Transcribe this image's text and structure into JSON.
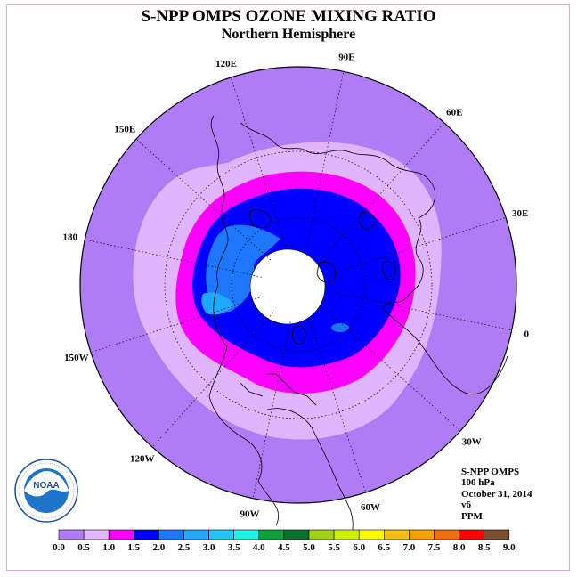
{
  "title": "S-NPP OMPS OZONE MIXING RATIO",
  "subtitle": "Northern Hemisphere",
  "longitude_labels": [
    "90E",
    "60E",
    "30E",
    "0",
    "30W",
    "60W",
    "90W",
    "120W",
    "150W",
    "180",
    "150E",
    "120E"
  ],
  "info": {
    "instrument": "S-NPP OMPS",
    "level": "100 hPa",
    "date": "October 31, 2014",
    "version": "v6",
    "units": "PPM"
  },
  "logo": {
    "text": "NOAA",
    "ring_text": "NATIONAL OCEANIC AND ATMOSPHERIC ADMINISTRATION · U.S. DEPARTMENT OF COMMERCE"
  },
  "colorbar": {
    "labels": [
      "0.0",
      "0.5",
      "1.0",
      "1.5",
      "2.0",
      "2.5",
      "3.0",
      "3.5",
      "4.0",
      "4.5",
      "5.0",
      "5.5",
      "6.0",
      "6.5",
      "7.0",
      "7.5",
      "8.0",
      "8.5",
      "9.0"
    ],
    "colors": [
      "#b07cf5",
      "#e0b4ff",
      "#ff00ff",
      "#0000ff",
      "#1e78ff",
      "#1ea8ff",
      "#1ec8f0",
      "#20f0e0",
      "#10a040",
      "#0a7030",
      "#a0d010",
      "#d0f010",
      "#ffff00",
      "#f0c010",
      "#f0a000",
      "#f07010",
      "#ff0000",
      "#7a5030"
    ]
  },
  "map_colors": {
    "outer": "#b07cf5",
    "band_0_5": "#e0b4ff",
    "band_1_0": "#ff00ff",
    "band_1_5": "#0000ff",
    "band_2_0": "#1e78ff",
    "band_2_5": "#1ea8ff",
    "no_data": "#ffffff"
  }
}
